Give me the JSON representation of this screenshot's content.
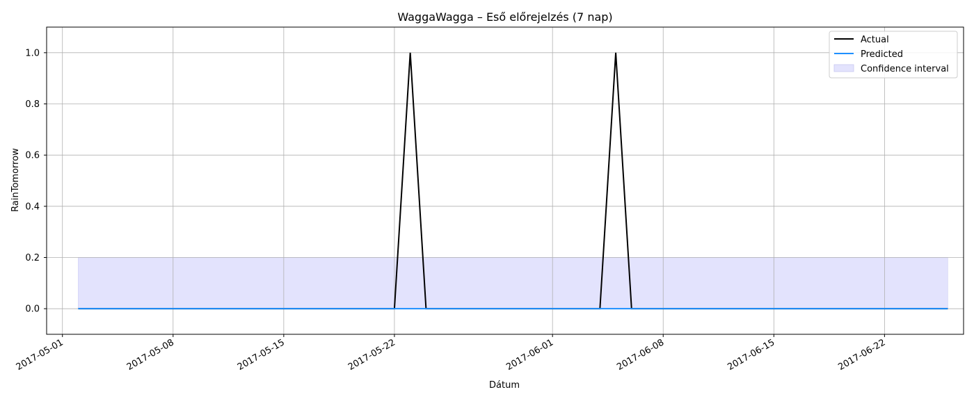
{
  "chart_data": {
    "type": "line",
    "title": "WaggaWagga – Eső előrejelzés (7 nap)",
    "xlabel": "Dátum",
    "ylabel": "RainTomorrow",
    "xlim": [
      "2017-04-30",
      "2017-06-27"
    ],
    "ylim": [
      -0.1,
      1.1
    ],
    "x_ticks": [
      "2017-05-01",
      "2017-05-08",
      "2017-05-15",
      "2017-05-22",
      "2017-06-01",
      "2017-06-08",
      "2017-06-15",
      "2017-06-22"
    ],
    "y_ticks": [
      0.0,
      0.2,
      0.4,
      0.6,
      0.8,
      1.0
    ],
    "y_tick_labels": [
      "0.0",
      "0.2",
      "0.4",
      "0.6",
      "0.8",
      "1.0"
    ],
    "grid": true,
    "legend_position": "top-right",
    "series": [
      {
        "name": "Actual",
        "color": "#000000",
        "points": [
          {
            "x": "2017-05-02",
            "y": 0
          },
          {
            "x": "2017-05-22",
            "y": 0
          },
          {
            "x": "2017-05-23",
            "y": 1
          },
          {
            "x": "2017-05-24",
            "y": 0
          },
          {
            "x": "2017-06-04",
            "y": 0
          },
          {
            "x": "2017-06-05",
            "y": 1
          },
          {
            "x": "2017-06-06",
            "y": 0
          },
          {
            "x": "2017-06-26",
            "y": 0
          }
        ]
      },
      {
        "name": "Predicted",
        "color": "#1e90ff",
        "points": [
          {
            "x": "2017-05-02",
            "y": 0
          },
          {
            "x": "2017-06-26",
            "y": 0
          }
        ]
      }
    ],
    "confidence_interval": {
      "name": "Confidence interval",
      "color": "#e3e3fd",
      "x_start": "2017-05-02",
      "x_end": "2017-06-26",
      "lower": 0,
      "upper": 0.2
    }
  }
}
